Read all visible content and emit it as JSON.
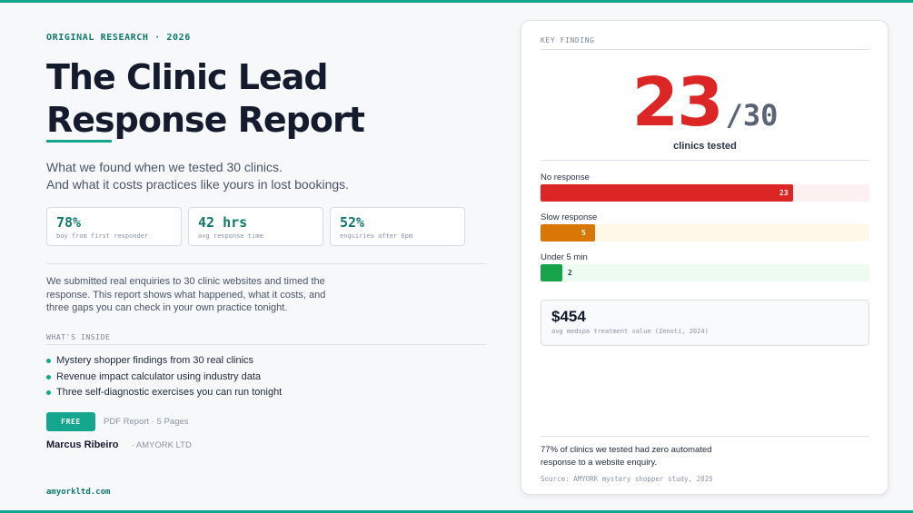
{
  "header": {
    "eyebrow": "ORIGINAL RESEARCH  ·  2026",
    "title_line1": "The Clinic Lead",
    "title_line2": "Response Report",
    "subtitle_line1": "What we found when we tested 30 clinics.",
    "subtitle_line2": "And what it costs practices like yours in lost bookings."
  },
  "stats": [
    {
      "value": "78%",
      "label": "buy from first responder"
    },
    {
      "value": "42 hrs",
      "label": "avg response time"
    },
    {
      "value": "52%",
      "label": "enquiries after 6pm"
    }
  ],
  "description": "We submitted real enquiries to 30 clinic websites and timed the response. This report shows what happened, what it costs, and three gaps you can check in your own practice tonight.",
  "inside": {
    "label": "WHAT'S INSIDE",
    "items": [
      "Mystery shopper findings from 30 real clinics",
      "Revenue impact calculator using industry data",
      "Three self-diagnostic exercises you can run tonight"
    ]
  },
  "cta": {
    "button": "FREE",
    "meta": "PDF Report · 5 Pages"
  },
  "author": {
    "name": "Marcus Ribeiro",
    "company": "· AMYORK LTD"
  },
  "site": "amyorkltd.com",
  "card": {
    "label": "KEY FINDING",
    "number": "23",
    "denominator": "/30",
    "caption": "clinics tested",
    "value": "$454",
    "value_label": "avg medspa treatment value (Zenoti, 2024)",
    "footnote": "77% of clinics we tested had zero automated response to a website enquiry.",
    "source": "Source: AMYORK mystery shopper study, 2025"
  },
  "chart_data": {
    "type": "bar",
    "orientation": "horizontal",
    "total": 30,
    "categories": [
      "No response",
      "Slow response",
      "Under 5 min"
    ],
    "values": [
      23,
      5,
      2
    ],
    "colors": [
      "#dc2626",
      "#d97706",
      "#16a34a"
    ],
    "track_colors": [
      "#fdf0f0",
      "#fdf8e8",
      "#eefbf1"
    ],
    "value_labels": [
      "23",
      "5",
      "2"
    ]
  }
}
